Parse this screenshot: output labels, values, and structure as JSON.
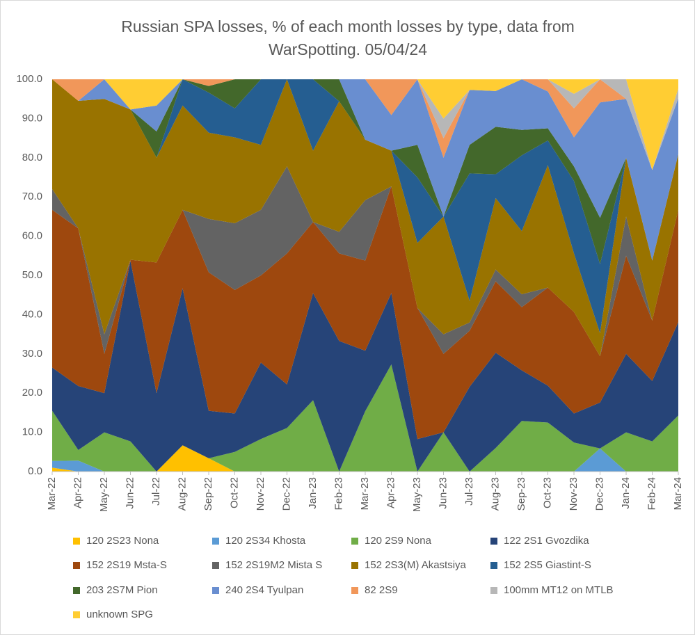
{
  "chart_data": {
    "type": "stacked_area",
    "title": "Russian SPA losses, % of each month losses by type, data from",
    "subtitle": "WarSpotting. 05/04/24",
    "categories": [
      "Mar-22",
      "Apr-22",
      "May-22",
      "Jun-22",
      "Jul-22",
      "Aug-22",
      "Sep-22",
      "Oct-22",
      "Nov-22",
      "Dec-22",
      "Jan-23",
      "Feb-23",
      "Mar-23",
      "Apr-23",
      "May-23",
      "Jun-23",
      "Jul-23",
      "Aug-23",
      "Sep-23",
      "Oct-23",
      "Nov-23",
      "Dec-23",
      "Jan-24",
      "Feb-24",
      "Mar-24"
    ],
    "ylim": [
      0,
      100
    ],
    "yticks": [
      {
        "value": 0,
        "label": "0.0"
      },
      {
        "value": 10,
        "label": "10.0"
      },
      {
        "value": 20,
        "label": "20.0"
      },
      {
        "value": 30,
        "label": "30.0"
      },
      {
        "value": 40,
        "label": "40.0"
      },
      {
        "value": 50,
        "label": "50.0"
      },
      {
        "value": 60,
        "label": "60.0"
      },
      {
        "value": 70,
        "label": "70.0"
      },
      {
        "value": 80,
        "label": "80.0"
      },
      {
        "value": 90,
        "label": "90.0"
      },
      {
        "value": 100,
        "label": "100.0"
      }
    ],
    "grid": false,
    "legend": "bottom",
    "series": [
      {
        "name": "120 2S23 Nona",
        "color": "#ffc000",
        "values": [
          1,
          0,
          0,
          0,
          0,
          6.7,
          3.4,
          0,
          0,
          0,
          0,
          0,
          0,
          0,
          0,
          0,
          0,
          0,
          0,
          0,
          0,
          0,
          0,
          0,
          0
        ]
      },
      {
        "name": "120 2S34 Khosta",
        "color": "#5b9bd5",
        "values": [
          1.7,
          2.8,
          0,
          0,
          0,
          0,
          0,
          0,
          0,
          0,
          0,
          0,
          0,
          0,
          0,
          0,
          0,
          0,
          0,
          0,
          0,
          5.9,
          0,
          0,
          0
        ]
      },
      {
        "name": "120 2S9 Nona",
        "color": "#70ad47",
        "values": [
          12.8,
          2.7,
          10,
          7.7,
          0,
          0,
          0,
          5,
          8.3,
          11.1,
          18.2,
          0,
          15.4,
          27.3,
          0,
          10,
          0,
          6,
          12.9,
          12.5,
          7.4,
          0,
          10,
          7.7,
          14.3
        ]
      },
      {
        "name": "122 2S1 Gvozdika",
        "color": "#264478",
        "values": [
          11,
          16.3,
          10,
          46,
          20,
          40,
          12.1,
          9.8,
          19.5,
          11.1,
          27.3,
          33.3,
          15.4,
          18.2,
          8.3,
          0,
          21.6,
          24.3,
          12.9,
          9.4,
          7.4,
          11.7,
          20,
          15.4,
          23.8
        ]
      },
      {
        "name": "152 2S19 Msta-S",
        "color": "#9e480e",
        "values": [
          40.2,
          40.2,
          10,
          0.3,
          33.3,
          20,
          35.3,
          31.5,
          22.2,
          33.4,
          18.1,
          22.3,
          23,
          27.2,
          33.4,
          20,
          14.3,
          18.2,
          16.1,
          25,
          25.9,
          11.8,
          25,
          15.4,
          28.6
        ]
      },
      {
        "name": "152 2S19M2 Mista S",
        "color": "#636363",
        "values": [
          5.3,
          0,
          5,
          0,
          0,
          0,
          13.6,
          17,
          16.7,
          22.2,
          0,
          5.5,
          15.4,
          0,
          0,
          5,
          2.1,
          3,
          3.3,
          0,
          0,
          0,
          10,
          0,
          0
        ]
      },
      {
        "name": "152 2S3(M) Akastsiya",
        "color": "#997300",
        "values": [
          28,
          32.5,
          60,
          38.3,
          26.7,
          26.6,
          22,
          21.9,
          16.6,
          22.2,
          18.2,
          33.3,
          15.4,
          9.1,
          16.6,
          30,
          5.5,
          18.2,
          16.1,
          31.2,
          14.9,
          5.9,
          15,
          15.3,
          14.2
        ]
      },
      {
        "name": "152 2S5 Giastint-S",
        "color": "#255e91",
        "values": [
          0,
          0,
          0,
          0,
          0,
          6.7,
          10.2,
          7.4,
          16.7,
          0,
          18.2,
          0,
          0,
          0,
          16.7,
          0,
          32.5,
          6.1,
          19.3,
          6.3,
          18.5,
          17.6,
          0,
          0,
          0
        ]
      },
      {
        "name": "203 2S7M Pion",
        "color": "#43682b",
        "values": [
          0,
          0,
          0,
          0,
          6.7,
          0,
          1.7,
          7.4,
          0,
          0,
          0,
          5.6,
          0,
          0,
          8.3,
          0,
          7.3,
          12.1,
          6.5,
          3.1,
          3.7,
          11.8,
          0,
          0,
          0
        ]
      },
      {
        "name": "240 2S4 Tyulpan",
        "color": "#698ed0",
        "values": [
          0,
          0,
          5,
          0,
          6.6,
          0,
          0,
          0,
          0,
          0,
          0,
          0,
          15.4,
          9.1,
          16.7,
          15,
          14,
          9.1,
          12.9,
          9.4,
          7.4,
          29.4,
          15,
          23.1,
          14.3
        ]
      },
      {
        "name": "82 2S9",
        "color": "#f1975a",
        "values": [
          0,
          5.5,
          0,
          0,
          0,
          0,
          1.7,
          0,
          0,
          0,
          0,
          0,
          0,
          9.1,
          0,
          5,
          0,
          0,
          0,
          3.1,
          7.4,
          5.9,
          0,
          0,
          0
        ]
      },
      {
        "name": "100mm MT12 on MTLB",
        "color": "#b7b7b7",
        "values": [
          0,
          0,
          0,
          0,
          0,
          0,
          0,
          0,
          0,
          0,
          0,
          0,
          0,
          0,
          0,
          5,
          0,
          0,
          0,
          0,
          3.7,
          0,
          5,
          0,
          2.4
        ]
      },
      {
        "name": "unknown SPG",
        "color": "#ffcd33",
        "values": [
          0,
          0,
          0,
          7.7,
          6.7,
          0,
          0,
          0,
          0,
          0,
          0,
          0,
          0,
          0,
          0,
          10,
          2.7,
          3,
          0,
          0,
          3.7,
          0,
          0,
          23.1,
          2.4
        ]
      }
    ]
  }
}
